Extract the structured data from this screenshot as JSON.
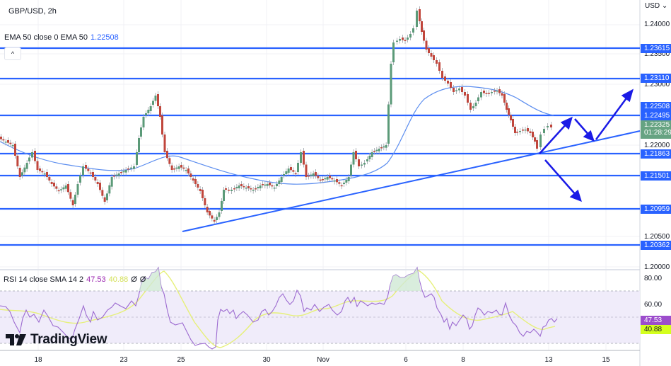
{
  "header": {
    "symbol_title": "GBP/USD, 2h",
    "currency": "USD",
    "collapse_icon": "chevron-up-icon"
  },
  "ema_legend": {
    "label": "EMA 50 close 0 EMA 50",
    "value": "1.22508"
  },
  "rsi_legend": {
    "label": "RSI 14 close SMA 14 2",
    "rsi_value": "47.53",
    "sma_value": "40.88",
    "extra1": "Ø",
    "extra2": "Ø"
  },
  "price_axis": {
    "ticks": [
      "1.24000",
      "1.23500",
      "1.23000",
      "1.22000",
      "1.20500",
      "1.20000"
    ],
    "tags": {
      "r1": "1.23615",
      "r2": "1.23110",
      "ema": "1.22508",
      "r3": "1.22495",
      "current_price": "1.22325",
      "countdown": "01:28:29",
      "s1": "1.21863",
      "s2": "1.21501",
      "s3": "1.20959",
      "s4": "1.20362"
    }
  },
  "rsi_axis": {
    "ticks": [
      "80.00",
      "60.00"
    ],
    "rsi_tag": "47.53",
    "sma_tag": "40.88"
  },
  "time_axis": {
    "labels": [
      "18",
      "23",
      "25",
      "30",
      "Nov",
      "6",
      "8",
      "13",
      "15"
    ]
  },
  "branding": {
    "logo_text": "TradingView"
  },
  "colors": {
    "level_line": "#2962ff",
    "arrows": "#1a1ae6",
    "bull_candle": "#5b9a78",
    "bear_candle": "#c0463c",
    "ema_line": "#5b8def",
    "rsi_line": "#9c6ad0",
    "rsi_sma": "#e6f07a",
    "rsi_band": "#f0ecfa"
  },
  "chart_data": [
    {
      "type": "candlestick",
      "title": "GBP/USD, 2h",
      "ylabel": "USD",
      "ylim": [
        1.198,
        1.2445
      ],
      "x_ticks": [
        "18",
        "23",
        "25",
        "30",
        "Nov",
        "6",
        "8",
        "13",
        "15"
      ],
      "horizontal_levels": [
        1.23615,
        1.2311,
        1.22495,
        1.21863,
        1.21501,
        1.20959,
        1.20362
      ],
      "ema50_last": 1.22508,
      "last_price": 1.22325,
      "approx_swing_points": [
        {
          "date": "17",
          "price": 1.2215
        },
        {
          "date": "19",
          "price": 1.21
        },
        {
          "date": "23",
          "price": 1.2285
        },
        {
          "date": "27",
          "price": 1.2075
        },
        {
          "date": "31",
          "price": 1.22
        },
        {
          "date": "Nov 2",
          "price": 1.2105
        },
        {
          "date": "Nov 6",
          "price": 1.243
        },
        {
          "date": "Nov 10",
          "price": 1.231
        },
        {
          "date": "Nov 12",
          "price": 1.2187
        },
        {
          "date": "Nov 13",
          "price": 1.2233
        }
      ],
      "annotations": [
        "ascending trendline from Oct 26 low",
        "projection arrows: up to 1.2249, pullback to trendline, breakout up; alternative breakdown below 1.2186"
      ]
    },
    {
      "type": "line",
      "title": "RSI 14 close SMA 14",
      "ylim": [
        20,
        85
      ],
      "levels": [
        70,
        50,
        30
      ],
      "series": [
        {
          "name": "RSI",
          "last": 47.53
        },
        {
          "name": "SMA",
          "last": 40.88
        }
      ]
    }
  ]
}
